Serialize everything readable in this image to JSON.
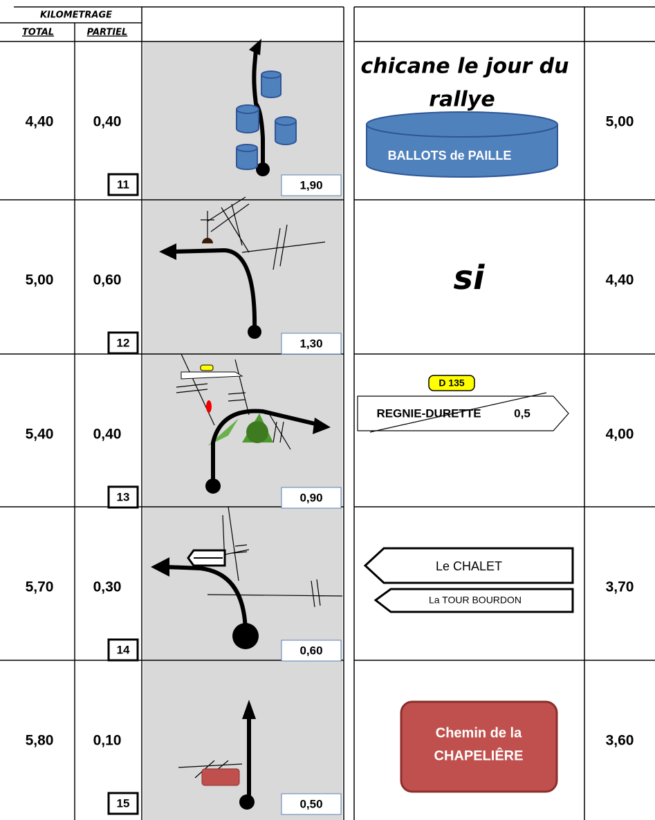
{
  "header": {
    "title": "KILOMETRAGE",
    "total": "TOTAL",
    "partial": "PARTIEL"
  },
  "rows": [
    {
      "total": "4,40",
      "partial": "0,40",
      "number": "11",
      "distance": "1,90",
      "remaining": "5,00",
      "note": {
        "line1": "chicane le jour du",
        "line2": "rallye",
        "sign": "BALLOTS de PAILLE"
      }
    },
    {
      "total": "5,00",
      "partial": "0,60",
      "number": "12",
      "distance": "1,30",
      "remaining": "4,40",
      "note": {
        "text": "si"
      }
    },
    {
      "total": "5,40",
      "partial": "0,40",
      "number": "13",
      "distance": "0,90",
      "remaining": "4,00",
      "note": {
        "road": "D 135",
        "sign": "REGNIE-DURETTE",
        "km": "0,5"
      }
    },
    {
      "total": "5,70",
      "partial": "0,30",
      "number": "14",
      "distance": "0,60",
      "remaining": "3,70",
      "note": {
        "sign1": "Le CHALET",
        "sign2": "La TOUR BOURDON"
      }
    },
    {
      "total": "5,80",
      "partial": "0,10",
      "number": "15",
      "distance": "0,50",
      "remaining": "3,60",
      "note": {
        "line1": "Chemin de la",
        "line2": "CHAPELIÊRE"
      }
    }
  ]
}
